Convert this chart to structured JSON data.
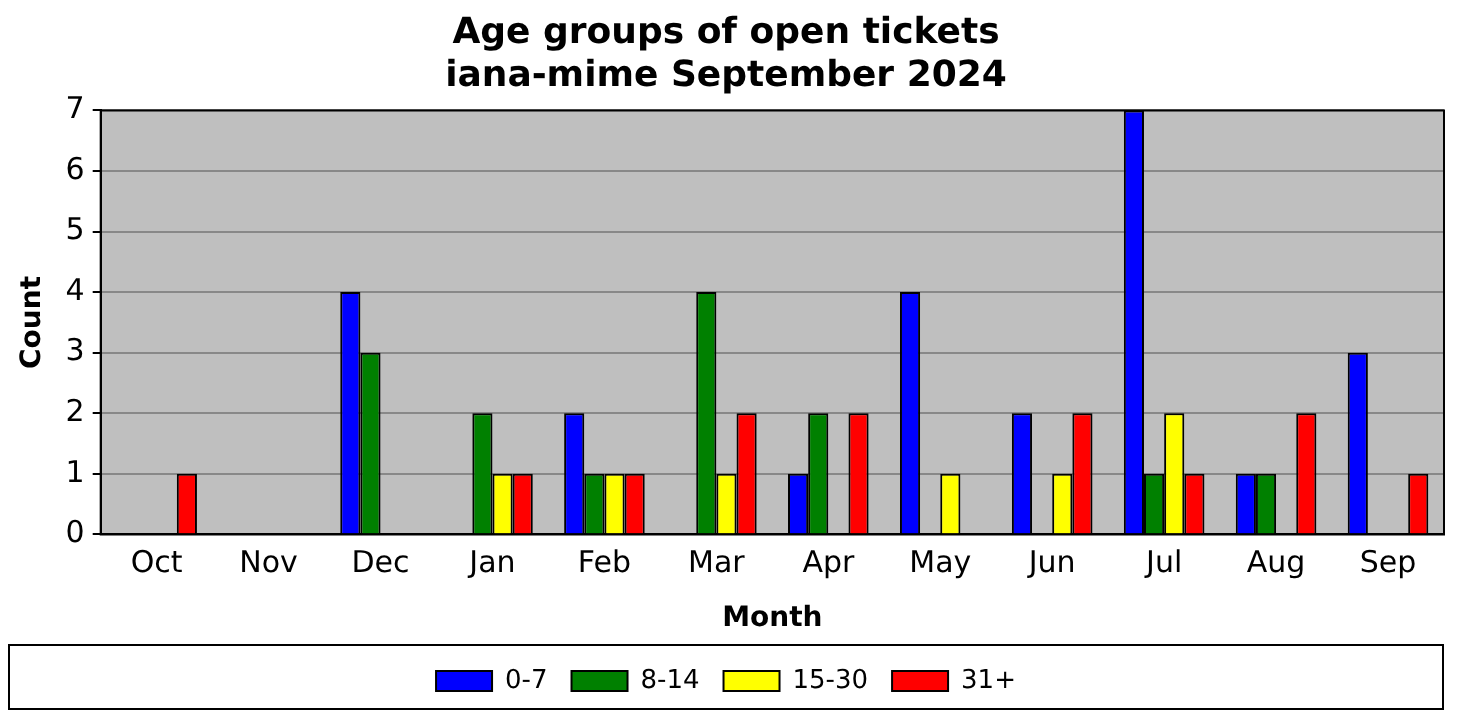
{
  "chart_data": {
    "type": "bar",
    "title": "Age groups of open tickets\niana-mime September 2024",
    "xlabel": "Month",
    "ylabel": "Count",
    "categories": [
      "Oct",
      "Nov",
      "Dec",
      "Jan",
      "Feb",
      "Mar",
      "Apr",
      "May",
      "Jun",
      "Jul",
      "Aug",
      "Sep"
    ],
    "series": [
      {
        "name": "0-7",
        "color": "#0000ff",
        "values": [
          0,
          0,
          4,
          0,
          2,
          0,
          1,
          4,
          2,
          7,
          1,
          3
        ]
      },
      {
        "name": "8-14",
        "color": "#008000",
        "values": [
          0,
          0,
          3,
          2,
          1,
          4,
          2,
          0,
          0,
          1,
          1,
          0
        ]
      },
      {
        "name": "15-30",
        "color": "#ffff00",
        "values": [
          0,
          0,
          0,
          1,
          1,
          1,
          0,
          1,
          1,
          2,
          0,
          0
        ]
      },
      {
        "name": "31+",
        "color": "#ff0000",
        "values": [
          1,
          0,
          0,
          1,
          1,
          2,
          2,
          0,
          2,
          1,
          2,
          1
        ]
      }
    ],
    "ylim": [
      0,
      7
    ],
    "yticks": [
      0,
      1,
      2,
      3,
      4,
      5,
      6,
      7
    ],
    "grid": "y",
    "legend": "bottom"
  }
}
